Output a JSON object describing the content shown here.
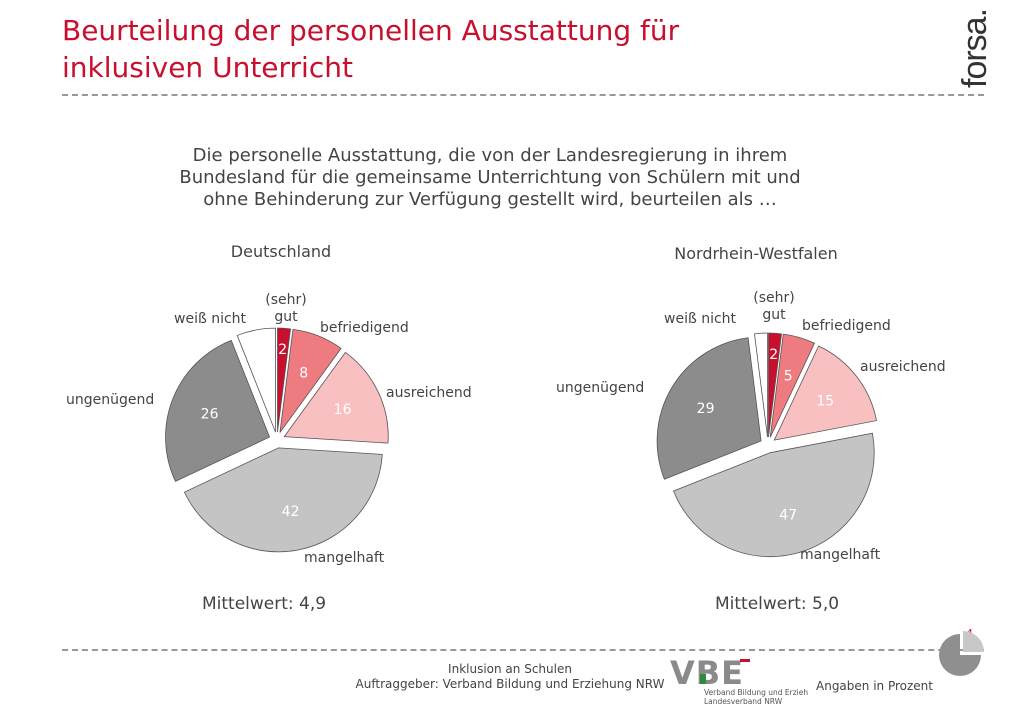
{
  "header": {
    "title_line1": "Beurteilung der personellen Ausstattung für",
    "title_line2": "inklusiven Unterricht",
    "logo_text": "forsa."
  },
  "question": {
    "line1": "Die personelle Ausstattung, die von der Landesregierung in ihrem",
    "line2": "Bundesland für die gemeinsame Unterrichtung von Schülern mit und",
    "line3": "ohne Behinderung zur Verfügung gestellt wird, beurteilen als …"
  },
  "chart_data": [
    {
      "type": "pie",
      "title": "Deutschland",
      "categories": [
        "(sehr) gut",
        "befriedigend",
        "ausreichend",
        "mangelhaft",
        "ungenügend",
        "weiß nicht"
      ],
      "values": [
        2,
        8,
        16,
        42,
        26,
        6
      ],
      "data_labels": [
        "2",
        "8",
        "16",
        "42",
        "26",
        ""
      ],
      "mean_label": "Mittelwert: 4,9"
    },
    {
      "type": "pie",
      "title": "Nordrhein-Westfalen",
      "categories": [
        "(sehr) gut",
        "befriedigend",
        "ausreichend",
        "mangelhaft",
        "ungenügend",
        "weiß nicht"
      ],
      "values": [
        2,
        5,
        15,
        47,
        29,
        2
      ],
      "data_labels": [
        "2",
        "5",
        "15",
        "47",
        "29",
        ""
      ],
      "mean_label": "Mittelwert: 5,0"
    }
  ],
  "colors": {
    "sehr_gut": "#c8102e",
    "befriedigend": "#ee7b80",
    "ausreichend": "#f9c0c2",
    "mangelhaft": "#c4c4c4",
    "ungenuegend": "#8c8c8c",
    "weiss_nicht": "#ffffff",
    "accent": "#c8102e"
  },
  "footer": {
    "page_number": "4",
    "line1": "Inklusion an Schulen",
    "line2": "Auftraggeber: Verband Bildung und Erziehung NRW",
    "vbe_logo": "VBE",
    "vbe_line1": "Verband Bildung und Erziehung",
    "vbe_line2": "Landesverband NRW",
    "units_note": "Angaben in Prozent"
  }
}
